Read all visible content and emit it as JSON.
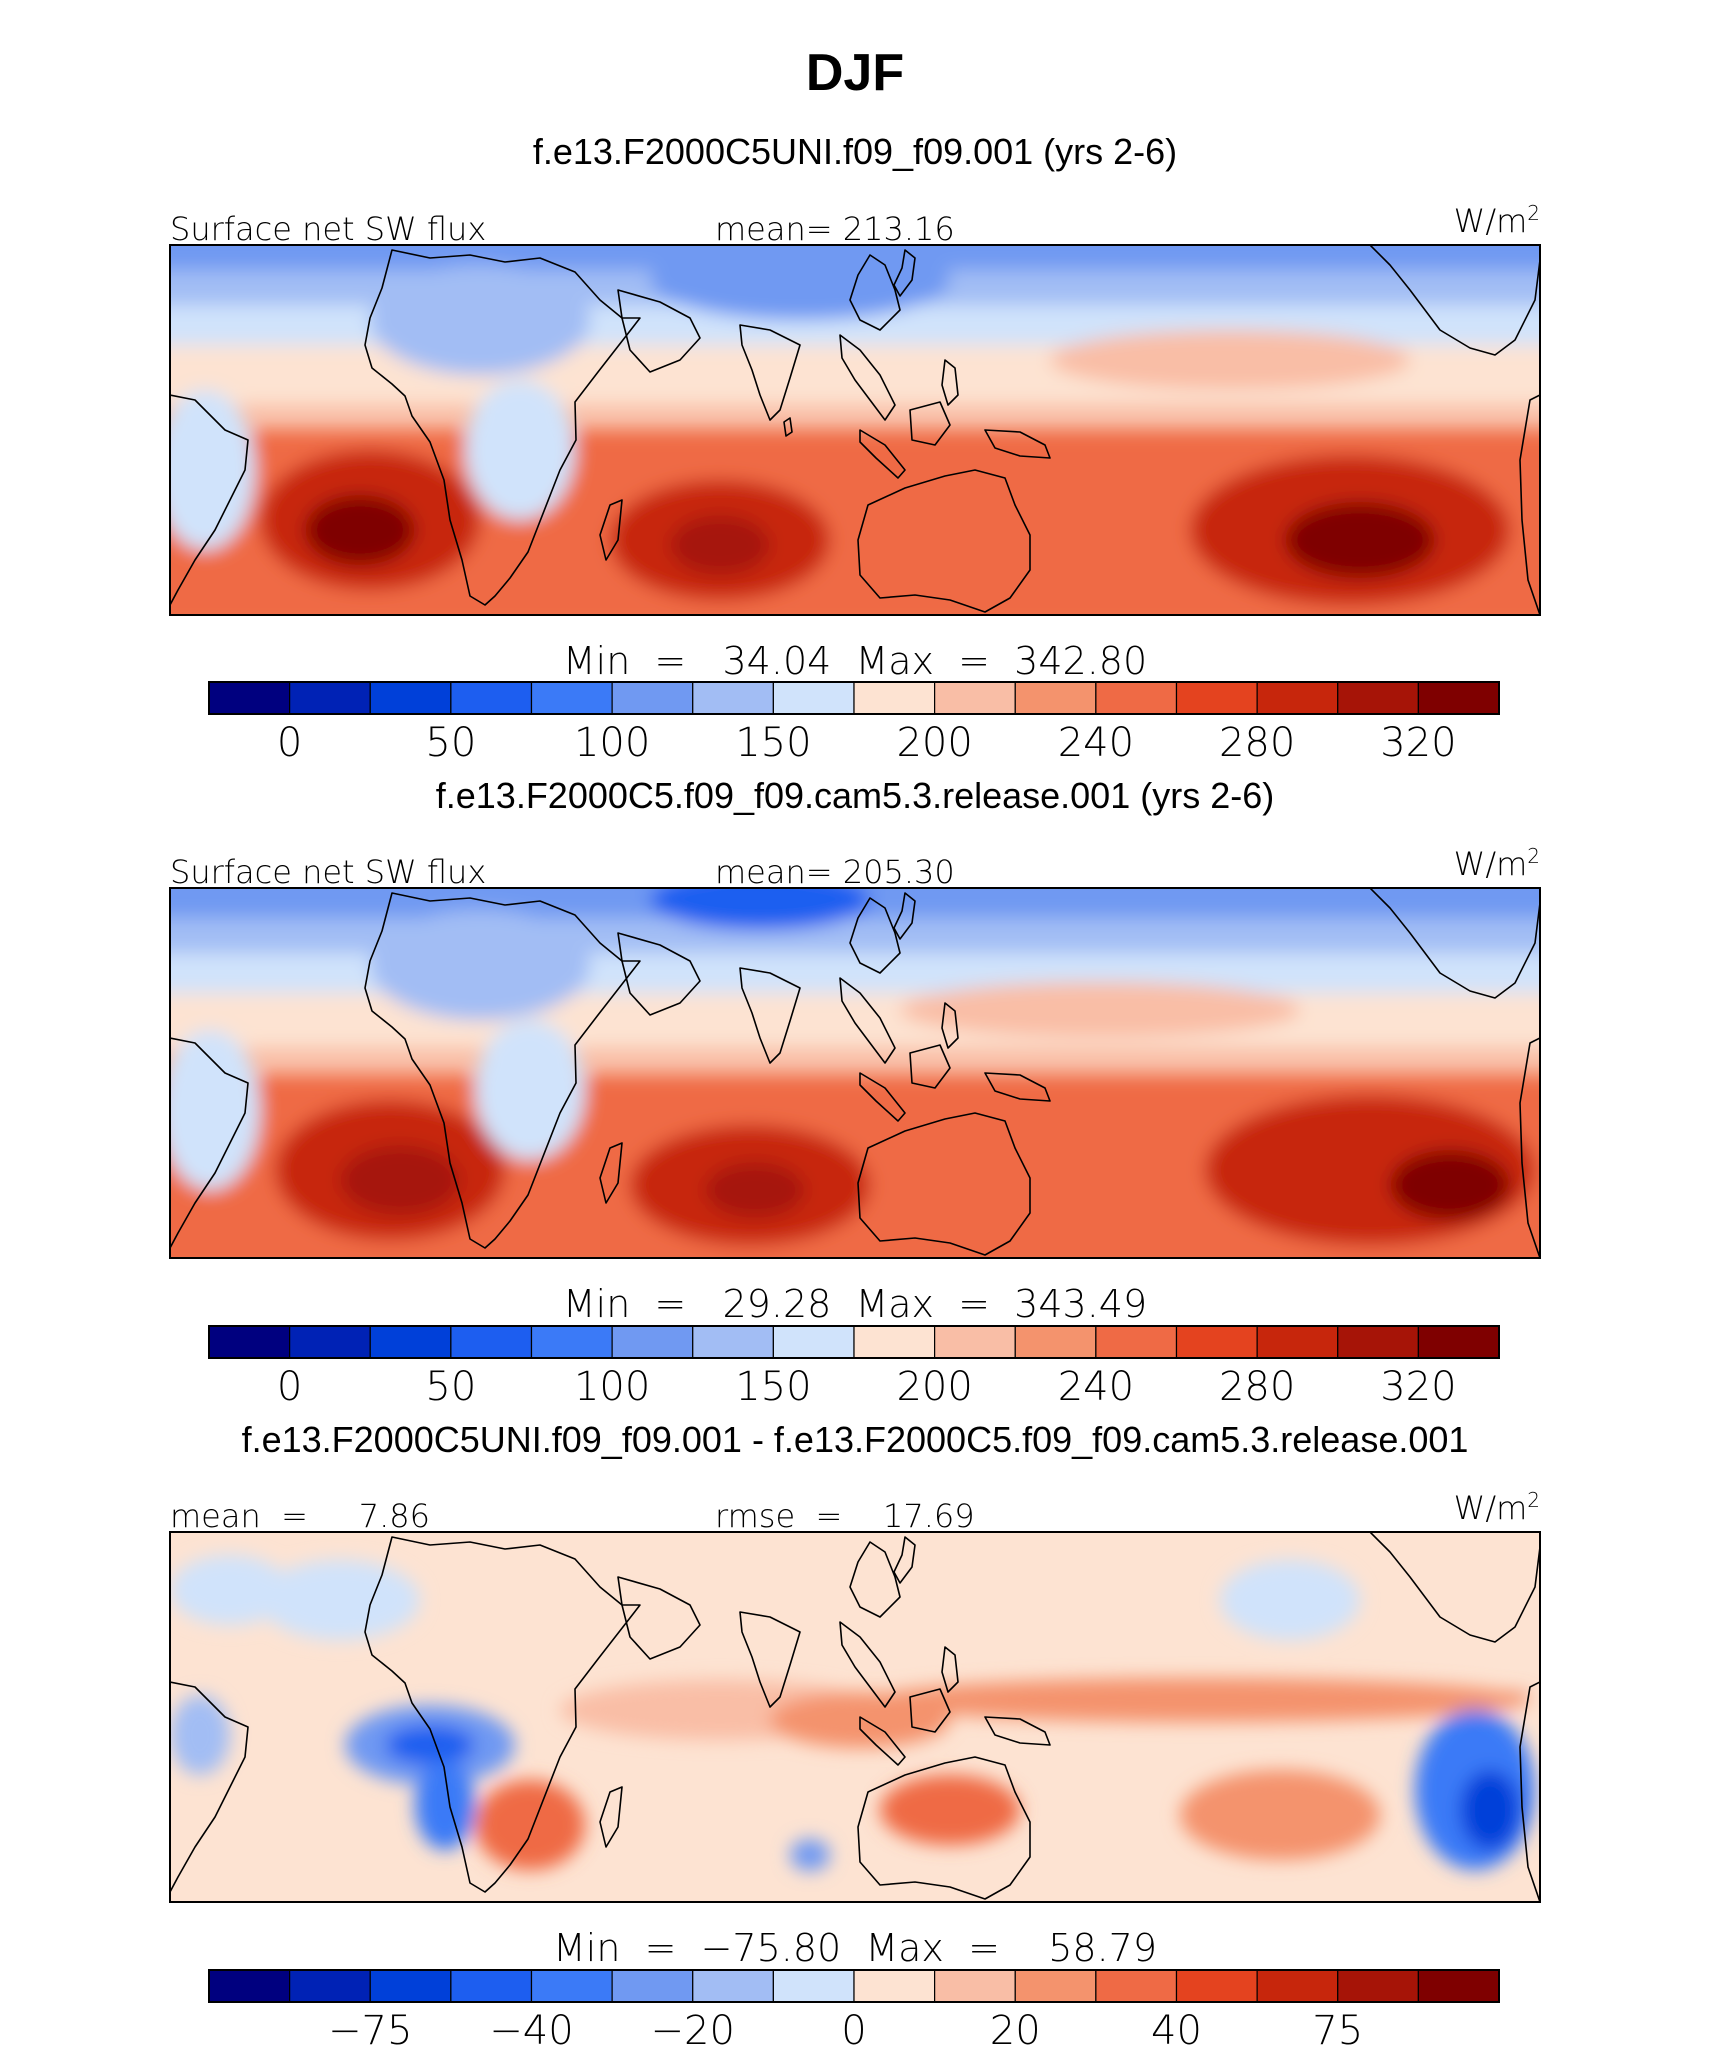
{
  "season_title": "DJF",
  "panels": [
    {
      "case_title": "f.e13.F2000C5UNI.f09_f09.001 (yrs 2-6)",
      "left_label": "Surface net SW flux",
      "center_label": "mean= 213.16",
      "units_base": "W/m",
      "units_exp": "2",
      "minmax": "Min  =   34.04  Max  =  342.80",
      "colorbar": {
        "colors": [
          "#00007f",
          "#0022b5",
          "#0040d9",
          "#1d5ef0",
          "#3b7af7",
          "#7099f2",
          "#a2bdf4",
          "#d0e3fb",
          "#fde3d2",
          "#f9bea6",
          "#f4936d",
          "#ef6a45",
          "#e4431f",
          "#c7260c",
          "#a61407",
          "#7f0000"
        ],
        "ticks": [
          {
            "label": "0",
            "boundary": 1
          },
          {
            "label": "50",
            "boundary": 3
          },
          {
            "label": "100",
            "boundary": 5
          },
          {
            "label": "150",
            "boundary": 7
          },
          {
            "label": "200",
            "boundary": 9
          },
          {
            "label": "240",
            "boundary": 11
          },
          {
            "label": "280",
            "boundary": 13
          },
          {
            "label": "320",
            "boundary": 15
          }
        ]
      }
    },
    {
      "case_title": "f.e13.F2000C5.f09_f09.cam5.3.release.001 (yrs 2-6)",
      "left_label": "Surface net SW flux",
      "center_label": "mean= 205.30",
      "units_base": "W/m",
      "units_exp": "2",
      "minmax": "Min  =   29.28  Max  =  343.49",
      "colorbar": {
        "colors": [
          "#00007f",
          "#0022b5",
          "#0040d9",
          "#1d5ef0",
          "#3b7af7",
          "#7099f2",
          "#a2bdf4",
          "#d0e3fb",
          "#fde3d2",
          "#f9bea6",
          "#f4936d",
          "#ef6a45",
          "#e4431f",
          "#c7260c",
          "#a61407",
          "#7f0000"
        ],
        "ticks": [
          {
            "label": "0",
            "boundary": 1
          },
          {
            "label": "50",
            "boundary": 3
          },
          {
            "label": "100",
            "boundary": 5
          },
          {
            "label": "150",
            "boundary": 7
          },
          {
            "label": "200",
            "boundary": 9
          },
          {
            "label": "240",
            "boundary": 11
          },
          {
            "label": "280",
            "boundary": 13
          },
          {
            "label": "320",
            "boundary": 15
          }
        ]
      }
    },
    {
      "case_title": "f.e13.F2000C5UNI.f09_f09.001 - f.e13.F2000C5.f09_f09.cam5.3.release.001",
      "left_label": "mean  =     7.86",
      "center_label": "rmse  =    17.69",
      "units_base": "W/m",
      "units_exp": "2",
      "minmax": "Min  =  −75.80  Max  =    58.79",
      "colorbar": {
        "colors": [
          "#00007f",
          "#0022b5",
          "#0040d9",
          "#1d5ef0",
          "#3b7af7",
          "#7099f2",
          "#a2bdf4",
          "#d0e3fb",
          "#fde3d2",
          "#f9bea6",
          "#f4936d",
          "#ef6a45",
          "#e4431f",
          "#c7260c",
          "#a61407",
          "#7f0000"
        ],
        "ticks": [
          {
            "label": "−75",
            "boundary": 2
          },
          {
            "label": "−40",
            "boundary": 4
          },
          {
            "label": "−20",
            "boundary": 6
          },
          {
            "label": "0",
            "boundary": 8
          },
          {
            "label": "20",
            "boundary": 10
          },
          {
            "label": "40",
            "boundary": 12
          },
          {
            "label": "75",
            "boundary": 14
          }
        ]
      }
    }
  ]
}
